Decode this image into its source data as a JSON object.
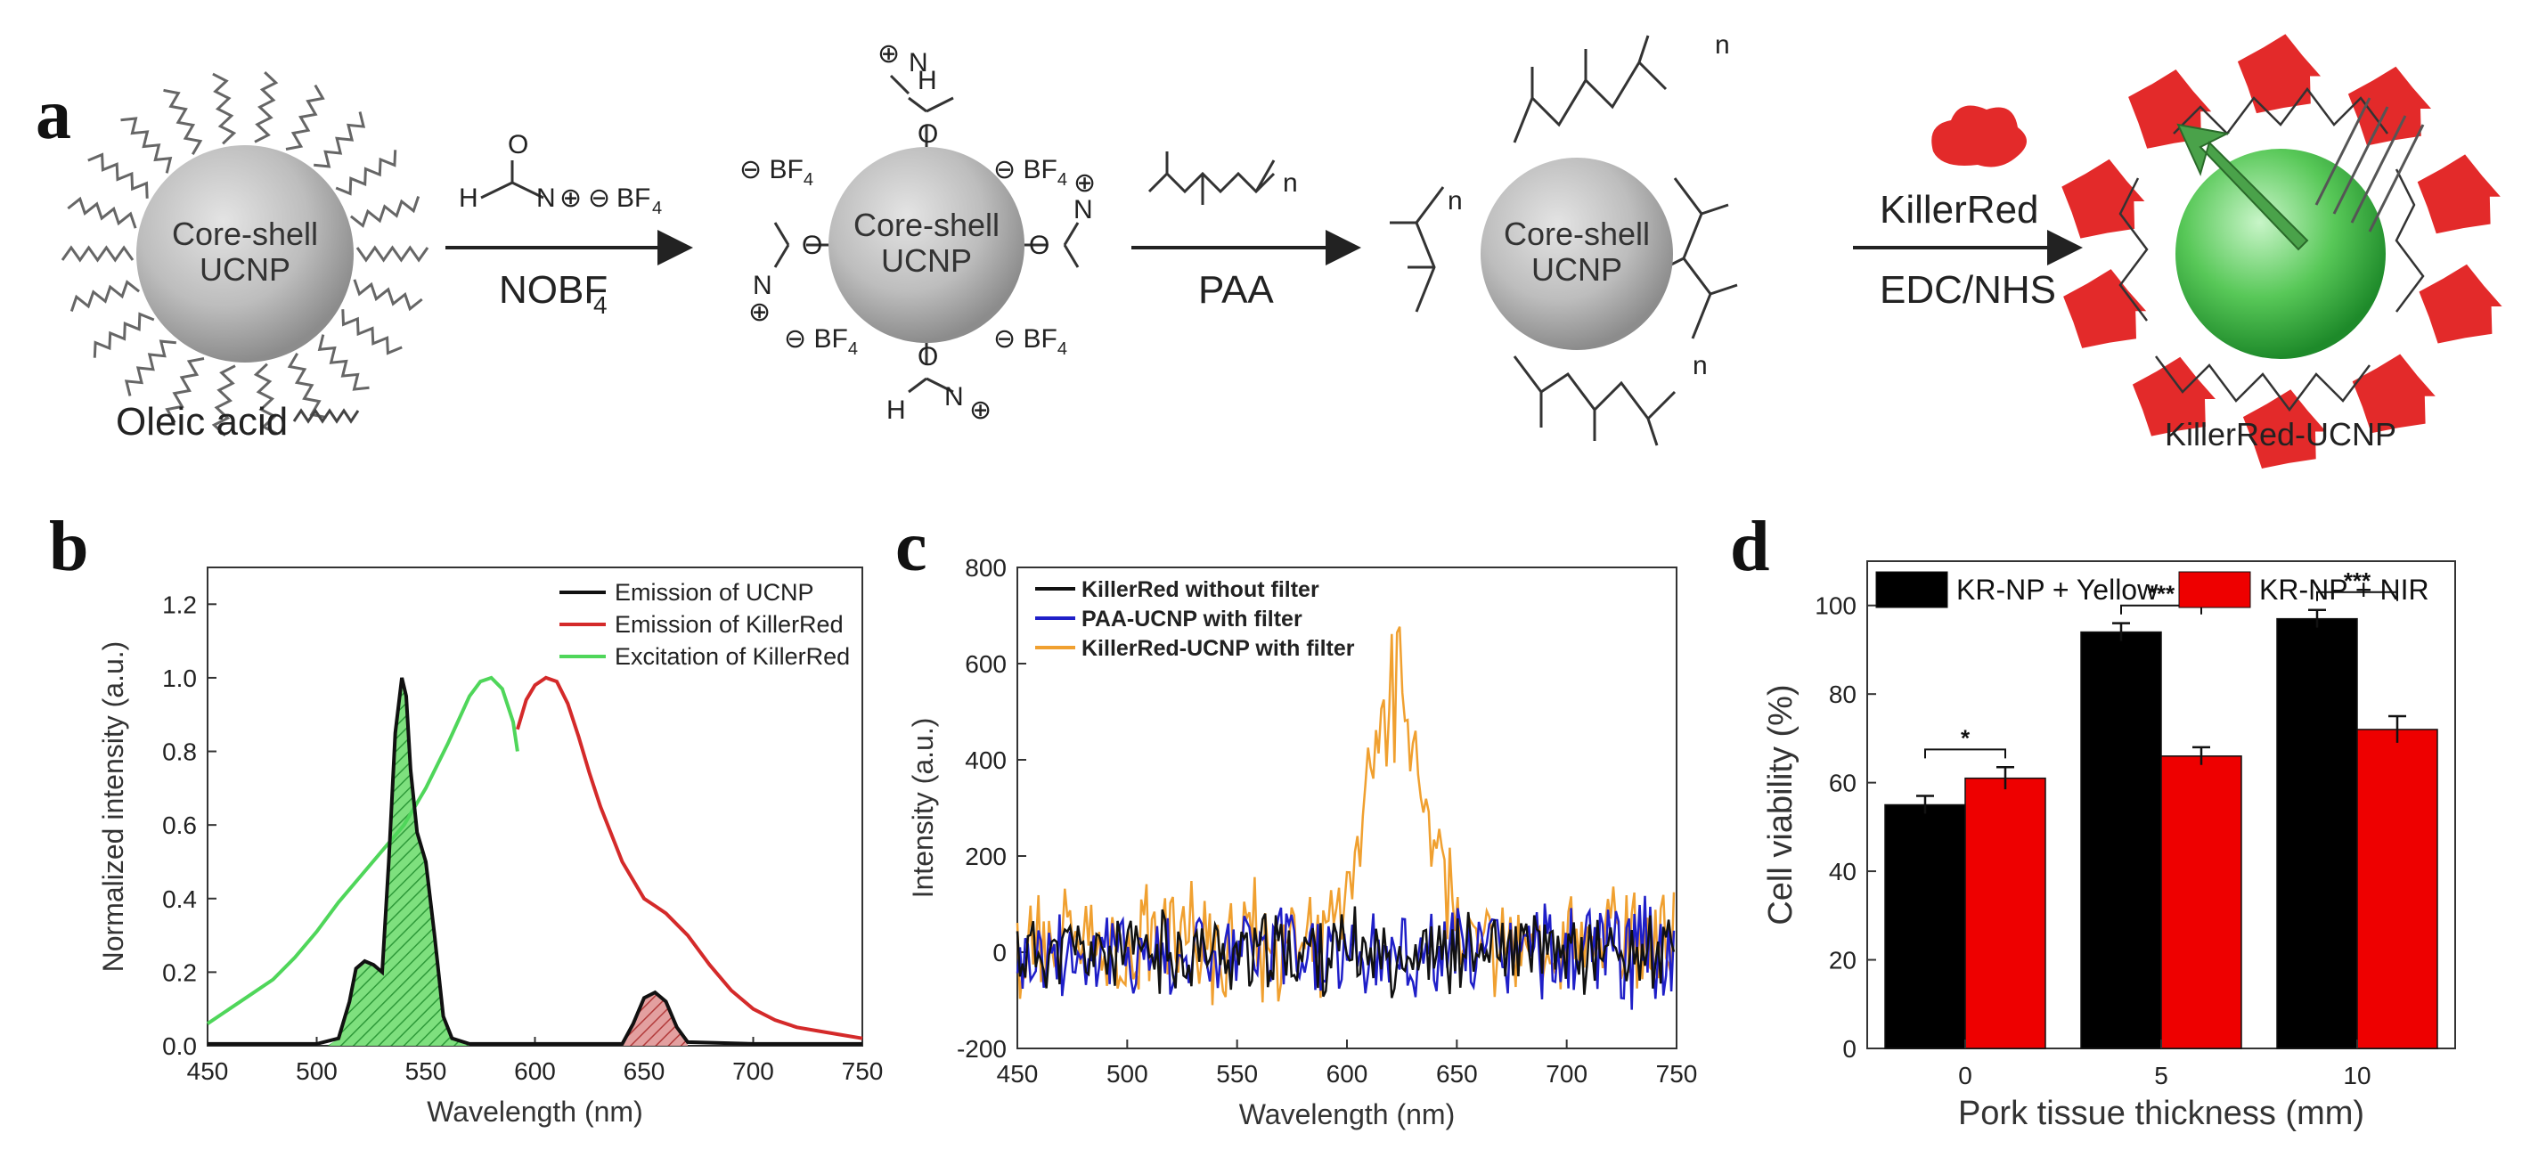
{
  "figure": {
    "panel_labels": {
      "a": "a",
      "b": "b",
      "c": "c",
      "d": "d"
    },
    "scheme": {
      "core_label_line1": "Core-shell",
      "core_label_line2": "UCNP",
      "oleic_acid_label": "Oleic acid",
      "step1_reagent": "NOBF",
      "step1_reagent_sub": "4",
      "bf4": "BF",
      "bf4_sub": "4",
      "step2_reagent": "PAA",
      "step3_reagent_top": "KillerRed",
      "step3_reagent_bottom": "EDC/NHS",
      "product_label": "KillerRed-UCNP",
      "polymer_n": "n",
      "chem_H": "H",
      "chem_N": "N",
      "chem_O": "O",
      "minus": "⊖",
      "plus": "⊕"
    }
  },
  "chart_data": [
    {
      "id": "b",
      "type": "area",
      "title": "",
      "xlabel": "Wavelength (nm)",
      "ylabel": "Normalized intensity (a.u.)",
      "xlim": [
        450,
        750
      ],
      "ylim": [
        0,
        1.3
      ],
      "xticks": [
        450,
        500,
        550,
        600,
        650,
        700,
        750
      ],
      "yticks": [
        0.0,
        0.2,
        0.4,
        0.6,
        0.8,
        1.0,
        1.2
      ],
      "legend_position": "top-right",
      "series": [
        {
          "name": "Emission of UCNP",
          "color": "#111111",
          "x": [
            450,
            500,
            510,
            515,
            518,
            522,
            526,
            530,
            533,
            536,
            539,
            541,
            543,
            546,
            550,
            554,
            558,
            562,
            570,
            600,
            640,
            645,
            650,
            655,
            660,
            665,
            670,
            700,
            750
          ],
          "y": [
            0.005,
            0.005,
            0.02,
            0.12,
            0.21,
            0.23,
            0.22,
            0.2,
            0.5,
            0.85,
            1.0,
            0.95,
            0.75,
            0.58,
            0.5,
            0.3,
            0.08,
            0.02,
            0.005,
            0.005,
            0.005,
            0.06,
            0.13,
            0.145,
            0.12,
            0.05,
            0.01,
            0.005,
            0.005
          ]
        },
        {
          "name": "Emission of KillerRed",
          "color": "#d42a2a",
          "x": [
            592,
            596,
            600,
            605,
            610,
            615,
            620,
            625,
            630,
            640,
            650,
            655,
            660,
            670,
            680,
            690,
            700,
            710,
            720,
            730,
            740,
            750
          ],
          "y": [
            0.86,
            0.94,
            0.98,
            1.0,
            0.99,
            0.93,
            0.84,
            0.74,
            0.65,
            0.5,
            0.4,
            0.38,
            0.36,
            0.3,
            0.22,
            0.15,
            0.1,
            0.07,
            0.05,
            0.04,
            0.03,
            0.02
          ]
        },
        {
          "name": "Excitation of KillerRed",
          "color": "#4fd65a",
          "x": [
            450,
            460,
            470,
            480,
            490,
            500,
            510,
            520,
            530,
            540,
            550,
            560,
            570,
            575,
            580,
            585,
            590,
            592
          ],
          "y": [
            0.06,
            0.1,
            0.14,
            0.18,
            0.24,
            0.31,
            0.39,
            0.46,
            0.53,
            0.6,
            0.7,
            0.82,
            0.95,
            0.99,
            1.0,
            0.97,
            0.88,
            0.8
          ]
        }
      ]
    },
    {
      "id": "c",
      "type": "line",
      "title": "",
      "xlabel": "Wavelength (nm)",
      "ylabel": "Intensity (a.u.)",
      "xlim": [
        450,
        750
      ],
      "ylim": [
        -200,
        800
      ],
      "xticks": [
        450,
        500,
        550,
        600,
        650,
        700,
        750
      ],
      "yticks": [
        -200,
        0,
        200,
        400,
        600,
        800
      ],
      "legend_position": "top-left",
      "series": [
        {
          "name": "KillerRed without filter",
          "color": "#111111",
          "noise_amplitude": 70,
          "baseline": 0
        },
        {
          "name": "PAA-UCNP with filter",
          "color": "#1f1fc8",
          "noise_amplitude": 90,
          "baseline": 0
        },
        {
          "name": "KillerRed-UCNP with filter",
          "color": "#f0a030",
          "noise_amplitude": 100,
          "baseline": 20,
          "peak_center": 622,
          "peak_width": 12,
          "peak_height": 560
        }
      ]
    },
    {
      "id": "d",
      "type": "bar",
      "title": "",
      "xlabel": "Pork tissue thickness (mm)",
      "ylabel": "Cell viability (%)",
      "ylim": [
        0,
        110
      ],
      "yticks": [
        0,
        20,
        40,
        60,
        80,
        100
      ],
      "categories": [
        "0",
        "5",
        "10"
      ],
      "legend_position": "top",
      "series": [
        {
          "name": "KR-NP + Yellow",
          "color": "#000000",
          "values": [
            55,
            94,
            97
          ],
          "errors": [
            2,
            2,
            2
          ]
        },
        {
          "name": "KR-NP + NIR",
          "color": "#ee0000",
          "values": [
            61,
            66,
            72
          ],
          "errors": [
            2.5,
            2,
            3
          ]
        }
      ],
      "significance": [
        "*",
        "***",
        "***"
      ]
    }
  ]
}
